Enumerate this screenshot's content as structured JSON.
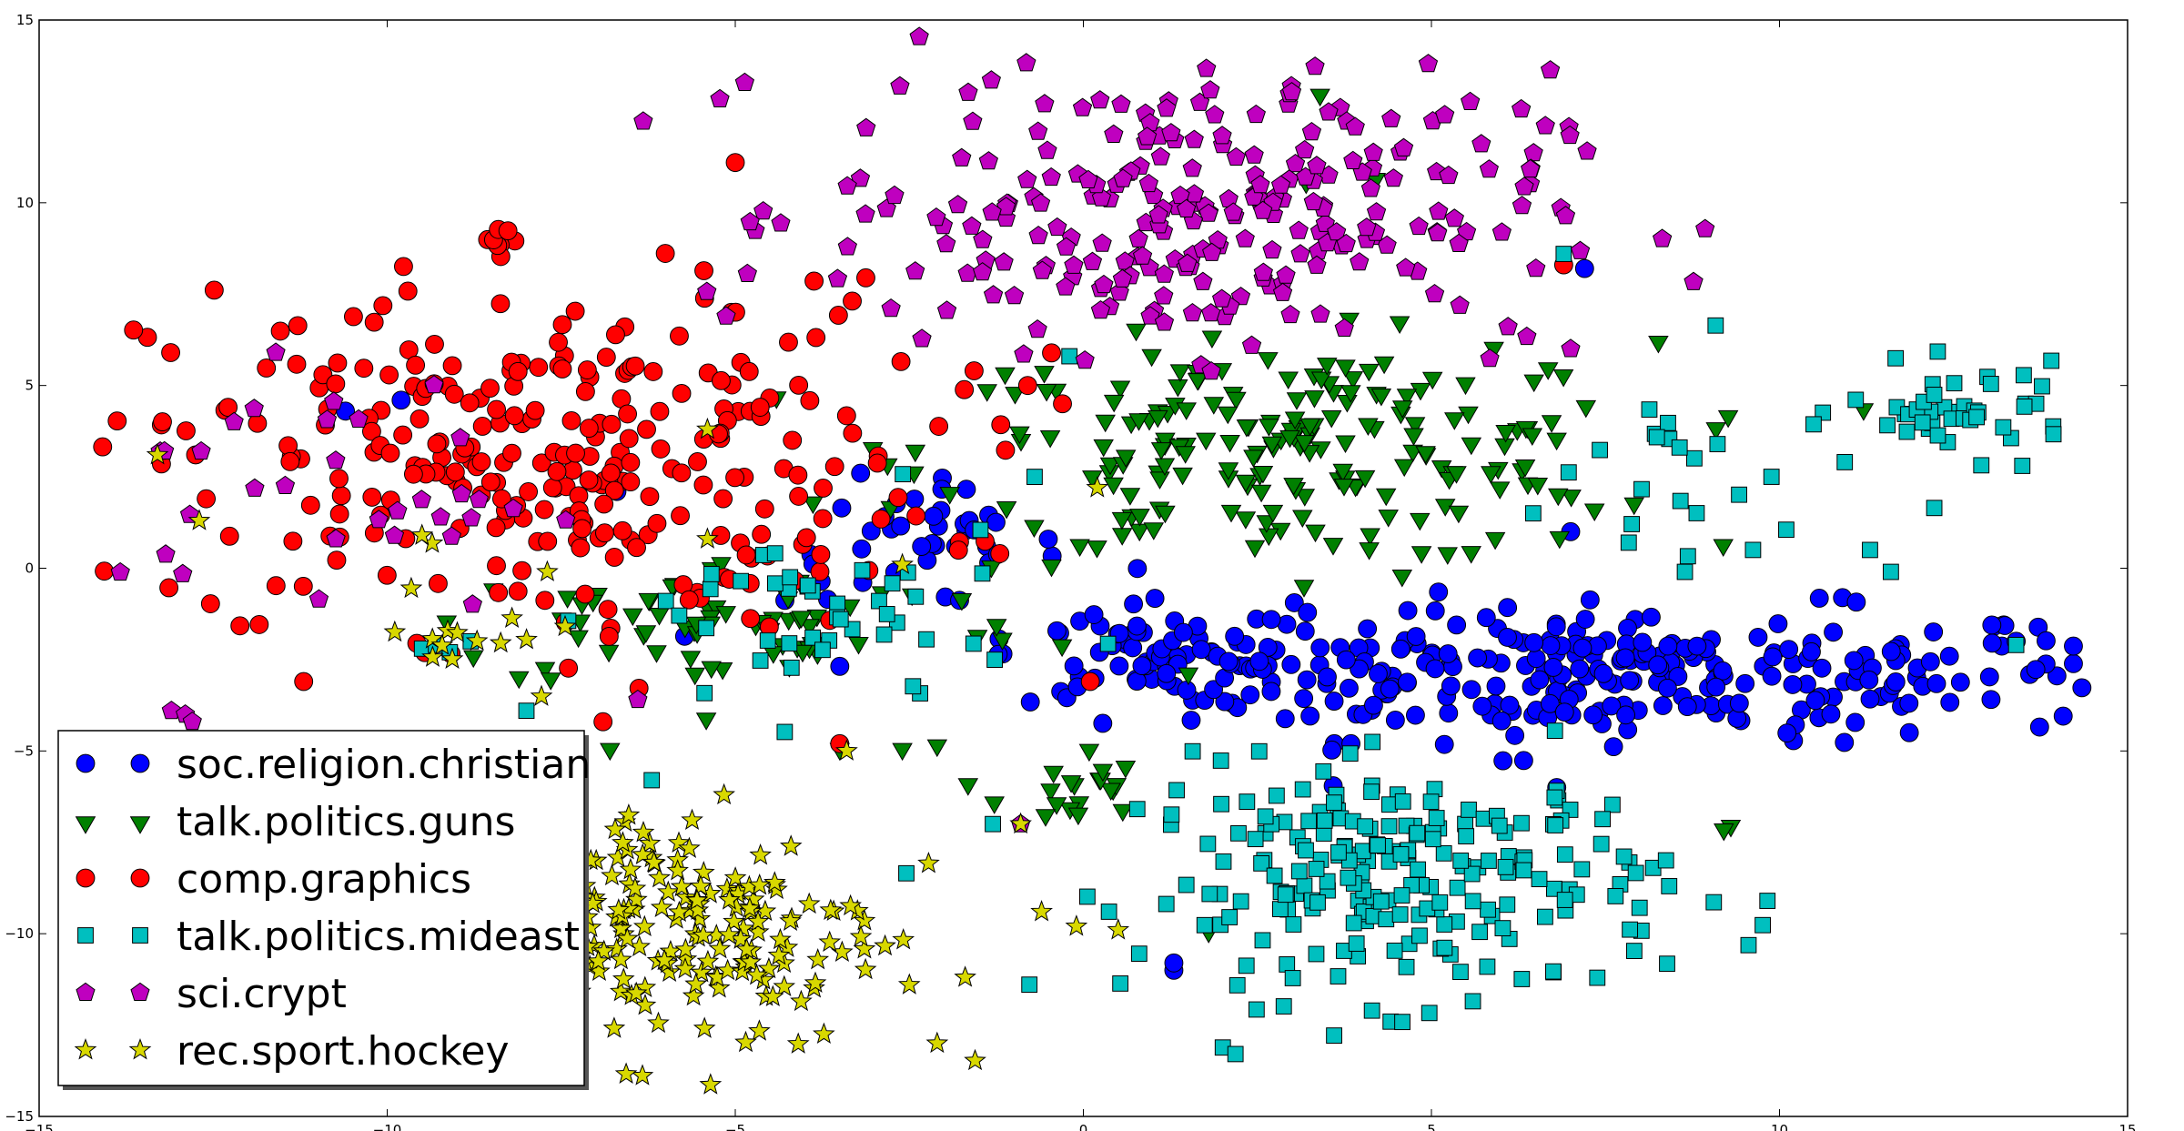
{
  "chart_data": {
    "type": "scatter",
    "title": "",
    "xlabel": "",
    "ylabel": "",
    "xlim": [
      -15,
      15
    ],
    "ylim": [
      -15,
      15
    ],
    "xticks": [
      -15,
      -10,
      -5,
      0,
      5,
      10,
      15
    ],
    "yticks": [
      -15,
      -10,
      -5,
      0,
      5,
      10,
      15
    ],
    "grid": false,
    "legend_position": "lower-left",
    "series": [
      {
        "name": "soc.religion.christian",
        "marker": "circle",
        "color": "#0000ff",
        "clusters": [
          {
            "cx": 7.5,
            "cy": -2.9,
            "sx": 3.8,
            "sy": 0.9,
            "n": 300
          },
          {
            "cx": -2.3,
            "cy": 0.6,
            "sx": 1.0,
            "sy": 0.8,
            "n": 40
          },
          {
            "cx": 1.3,
            "cy": -2.3,
            "sx": 1.2,
            "sy": 0.7,
            "n": 60
          }
        ],
        "points": [
          [
            -10.6,
            4.3
          ],
          [
            -9.8,
            4.6
          ],
          [
            -6.7,
            2.1
          ],
          [
            1.3,
            -11.0
          ],
          [
            1.3,
            -10.8
          ],
          [
            7.2,
            8.2
          ],
          [
            7.0,
            1.0
          ],
          [
            13.4,
            -2.0
          ],
          [
            -3.2,
            2.6
          ],
          [
            6.8,
            -6.0
          ]
        ]
      },
      {
        "name": "talk.politics.guns",
        "marker": "triangle-down",
        "color": "#008000",
        "clusters": [
          {
            "cx": 3.0,
            "cy": 3.2,
            "sx": 2.6,
            "sy": 1.5,
            "n": 210
          },
          {
            "cx": -5.0,
            "cy": -1.5,
            "sx": 2.2,
            "sy": 0.9,
            "n": 70
          },
          {
            "cx": -0.2,
            "cy": -6.0,
            "sx": 0.5,
            "sy": 0.6,
            "n": 20
          }
        ],
        "points": [
          [
            3.4,
            13.0
          ],
          [
            3.2,
            10.6
          ],
          [
            4.2,
            10.7
          ],
          [
            9.3,
            -7.0
          ],
          [
            9.2,
            -7.1
          ],
          [
            1.8,
            -9.9
          ],
          [
            -2.1,
            -4.8
          ],
          [
            -2.6,
            -4.9
          ],
          [
            -3.5,
            -4.9
          ],
          [
            -6.8,
            -4.9
          ]
        ]
      },
      {
        "name": "comp.graphics",
        "marker": "circle",
        "color": "#ff0000",
        "clusters": [
          {
            "cx": -7.8,
            "cy": 3.0,
            "sx": 2.8,
            "sy": 2.4,
            "n": 300
          },
          {
            "cx": -8.3,
            "cy": 9.0,
            "sx": 0.15,
            "sy": 0.15,
            "n": 8
          }
        ],
        "points": [
          [
            -12.6,
            1.9
          ],
          [
            -5.0,
            11.1
          ],
          [
            6.9,
            8.3
          ],
          [
            0.1,
            -3.1
          ],
          [
            -3.5,
            -4.8
          ],
          [
            -0.8,
            5.0
          ],
          [
            -0.3,
            4.5
          ],
          [
            -11.2,
            -3.1
          ],
          [
            -6.9,
            -4.2
          ],
          [
            -1.2,
            0.4
          ]
        ]
      },
      {
        "name": "talk.politics.mideast",
        "marker": "square",
        "color": "#00bfbf",
        "clusters": [
          {
            "cx": 4.6,
            "cy": -8.6,
            "sx": 1.9,
            "sy": 1.6,
            "n": 230
          },
          {
            "cx": 12.6,
            "cy": 4.3,
            "sx": 0.8,
            "sy": 0.6,
            "n": 45
          },
          {
            "cx": -3.8,
            "cy": -1.5,
            "sx": 1.4,
            "sy": 1.4,
            "n": 45
          },
          {
            "cx": 8.6,
            "cy": 2.0,
            "sx": 1.6,
            "sy": 1.8,
            "n": 25
          }
        ],
        "points": [
          [
            -9.5,
            -2.2
          ],
          [
            -9.3,
            -2.1
          ],
          [
            -9.1,
            -2.3
          ],
          [
            -8.8,
            -2.0
          ],
          [
            -8.0,
            -3.9
          ],
          [
            -0.2,
            5.8
          ],
          [
            -0.7,
            2.5
          ],
          [
            6.9,
            8.6
          ],
          [
            13.4,
            -2.1
          ],
          [
            11.6,
            -0.1
          ],
          [
            11.3,
            0.5
          ],
          [
            -6.2,
            -5.8
          ],
          [
            -1.3,
            -7.0
          ]
        ]
      },
      {
        "name": "sci.crypt",
        "marker": "pentagon",
        "color": "#bf00bf",
        "clusters": [
          {
            "cx": 1.5,
            "cy": 9.8,
            "sx": 2.6,
            "sy": 1.9,
            "n": 270
          },
          {
            "cx": -10.8,
            "cy": 2.0,
            "sx": 1.5,
            "sy": 1.6,
            "n": 30
          }
        ],
        "points": [
          [
            -13.1,
            -3.9
          ],
          [
            -12.9,
            -4.0
          ],
          [
            -12.8,
            -4.2
          ],
          [
            -13.2,
            3.2
          ],
          [
            6.1,
            6.6
          ],
          [
            6.5,
            8.2
          ],
          [
            7.0,
            6.0
          ],
          [
            -0.9,
            -7.0
          ],
          [
            -6.4,
            -3.6
          ],
          [
            -12.2,
            4.0
          ],
          [
            -11.6,
            5.9
          ]
        ]
      },
      {
        "name": "rec.sport.hockey",
        "marker": "star",
        "color": "#d8d800",
        "clusters": [
          {
            "cx": -5.8,
            "cy": -9.8,
            "sx": 1.5,
            "sy": 1.7,
            "n": 210
          },
          {
            "cx": -9.0,
            "cy": -1.8,
            "sx": 0.7,
            "sy": 1.0,
            "n": 15
          }
        ],
        "points": [
          [
            -13.3,
            3.1
          ],
          [
            -12.7,
            1.3
          ],
          [
            -9.5,
            0.9
          ],
          [
            -7.7,
            -0.1
          ],
          [
            0.2,
            2.2
          ],
          [
            -0.6,
            -9.4
          ],
          [
            -0.1,
            -9.8
          ],
          [
            0.5,
            -9.9
          ],
          [
            -2.1,
            -13.0
          ],
          [
            -2.5,
            -11.4
          ],
          [
            -5.4,
            3.8
          ],
          [
            -5.4,
            0.8
          ],
          [
            -2.6,
            0.1
          ],
          [
            -0.9,
            -7.0
          ],
          [
            -3.4,
            -5.0
          ]
        ]
      }
    ]
  }
}
